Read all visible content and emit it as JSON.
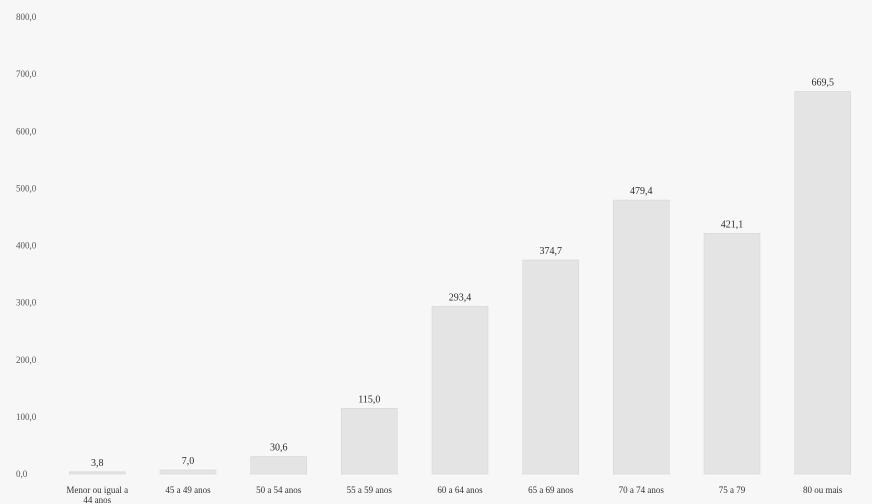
{
  "chart_data": {
    "type": "bar",
    "title": "",
    "xlabel": "",
    "ylabel": "",
    "ylim": [
      0,
      800
    ],
    "yticks": [
      "0,0",
      "100,0",
      "200,0",
      "300,0",
      "400,0",
      "500,0",
      "600,0",
      "700,0",
      "800,0"
    ],
    "categories": [
      [
        "Menor ou igual a",
        "44 anos"
      ],
      [
        "45 a 49 anos"
      ],
      [
        "50 a 54 anos"
      ],
      [
        "55 a 59 anos"
      ],
      [
        "60 a 64 anos"
      ],
      [
        "65 a 69 anos"
      ],
      [
        "70 a 74 anos"
      ],
      [
        "75 a 79"
      ],
      [
        "80 ou mais"
      ]
    ],
    "values": [
      3.8,
      7.0,
      30.6,
      115.0,
      293.4,
      374.7,
      479.4,
      421.1,
      669.5
    ],
    "data_labels": [
      "3,8",
      "7,0",
      "30,6",
      "115,0",
      "293,4",
      "374,7",
      "479,4",
      "421,1",
      "669,5"
    ],
    "bar_color": "#e4e4e4",
    "grid": false,
    "legend": "none"
  }
}
